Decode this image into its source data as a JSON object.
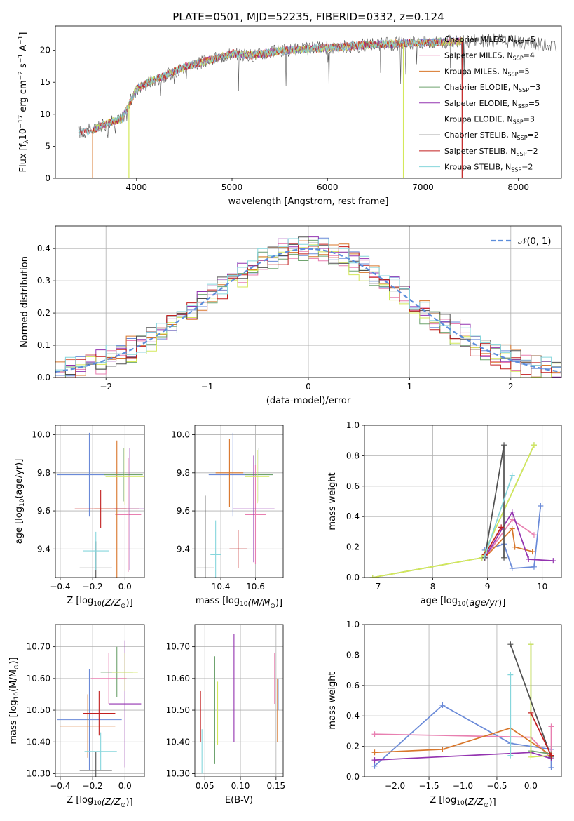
{
  "figure_title": "PLATE=0501, MJD=52235, FIBERID=0332, z=0.124",
  "colors": {
    "chabrier_miles": "#6a8ad8",
    "salpeter_miles": "#e87fb0",
    "kroupa_miles": "#d8762a",
    "chabrier_elodie": "#6fa36f",
    "salpeter_elodie": "#9333b0",
    "kroupa_elodie": "#d4e85a",
    "chabrier_stelib": "#505050",
    "salpeter_stelib": "#c21f1f",
    "kroupa_stelib": "#86d6dc",
    "normal_curve": "#5b8ddb",
    "grid": "#b0b0b0"
  },
  "chart_data": [
    {
      "id": "spectrum",
      "type": "line",
      "title": "",
      "xlabel": "wavelength [Angstrom, rest frame]",
      "ylabel_main": "Flux [f",
      "ylabel_sub": "λ",
      "ylabel_rest": "10",
      "ylabel_exp": "−17",
      "ylabel_units": " erg cm",
      "ylabel_units_exp": "−2",
      "ylabel_units2": " s",
      "ylabel_units2_exp": "−1",
      "ylabel_units3": " A",
      "ylabel_units3_exp": "−1",
      "ylabel_close": "]",
      "xlim": [
        3150,
        8450
      ],
      "ylim": [
        0,
        23.8
      ],
      "xticks": [
        4000,
        5000,
        6000,
        7000,
        8000
      ],
      "yticks": [
        0,
        5,
        10,
        15,
        20
      ],
      "grid": false,
      "legend_position": "upper right",
      "legend": [
        {
          "name": "Chabrier MILES, N",
          "sub": "SSP",
          "suffix": "=5",
          "color_key": "chabrier_miles"
        },
        {
          "name": "Salpeter MILES, N",
          "sub": "SSP",
          "suffix": "=4",
          "color_key": "salpeter_miles"
        },
        {
          "name": "Kroupa MILES, N",
          "sub": "SSP",
          "suffix": "=5",
          "color_key": "kroupa_miles"
        },
        {
          "name": "Chabrier ELODIE, N",
          "sub": "SSP",
          "suffix": "=3",
          "color_key": "chabrier_elodie"
        },
        {
          "name": "Salpeter ELODIE, N",
          "sub": "SSP",
          "suffix": "=5",
          "color_key": "salpeter_elodie"
        },
        {
          "name": "Kroupa ELODIE, N",
          "sub": "SSP",
          "suffix": "=3",
          "color_key": "kroupa_elodie"
        },
        {
          "name": "Chabrier STELIB, N",
          "sub": "SSP",
          "suffix": "=2",
          "color_key": "chabrier_stelib"
        },
        {
          "name": "Salpeter STELIB, N",
          "sub": "SSP",
          "suffix": "=2",
          "color_key": "salpeter_stelib"
        },
        {
          "name": "Kroupa STELIB, N",
          "sub": "SSP",
          "suffix": "=2",
          "color_key": "kroupa_stelib"
        }
      ],
      "continuum": [
        [
          3400,
          7.2
        ],
        [
          3550,
          7.6
        ],
        [
          3700,
          8.6
        ],
        [
          3850,
          9.3
        ],
        [
          4000,
          14.0
        ],
        [
          4150,
          15.2
        ],
        [
          4300,
          16.0
        ],
        [
          4500,
          17.4
        ],
        [
          4800,
          18.6
        ],
        [
          5000,
          19.5
        ],
        [
          5200,
          19.2
        ],
        [
          5500,
          19.9
        ],
        [
          6000,
          20.4
        ],
        [
          6500,
          20.9
        ],
        [
          7000,
          21.2
        ],
        [
          7400,
          21.4
        ],
        [
          7800,
          21.6
        ],
        [
          8300,
          20.9
        ]
      ],
      "model_ranges": {
        "miles_elodie": [
          3540,
          7410
        ],
        "stelib": [
          3400,
          7200
        ],
        "data": [
          3400,
          8400
        ]
      },
      "dips": [
        {
          "x": 3540,
          "y": 0,
          "color_key": "kroupa_miles"
        },
        {
          "x": 3920,
          "y": 0,
          "color_key": "kroupa_elodie"
        },
        {
          "x": 6795,
          "y": 0,
          "color_key": "kroupa_elodie"
        },
        {
          "x": 7410,
          "y": 0,
          "color_key": "salpeter_stelib"
        }
      ]
    },
    {
      "id": "residuals",
      "type": "histogram",
      "xlabel": "(data-model)/error",
      "ylabel": "Normed distribution",
      "xlim": [
        -2.5,
        2.5
      ],
      "ylim": [
        0,
        0.47
      ],
      "xticks": [
        -2,
        -1,
        0,
        1,
        2
      ],
      "yticks": [
        0.0,
        0.1,
        0.2,
        0.3,
        0.4
      ],
      "grid": true,
      "legend_position": "upper right",
      "normal_label": "𝒩(0, 1)",
      "bin_width": 0.1,
      "bins_start": -2.5,
      "series": [
        {
          "color_key": "chabrier_miles",
          "dy": 0.01
        },
        {
          "color_key": "salpeter_miles",
          "dy": -0.008
        },
        {
          "color_key": "kroupa_miles",
          "dy": 0.015
        },
        {
          "color_key": "chabrier_elodie",
          "dy": -0.012
        },
        {
          "color_key": "salpeter_elodie",
          "dy": 0.02
        },
        {
          "color_key": "kroupa_elodie",
          "dy": -0.018
        },
        {
          "color_key": "chabrier_stelib",
          "dy": 0.005
        },
        {
          "color_key": "salpeter_stelib",
          "dy": -0.004
        },
        {
          "color_key": "kroupa_stelib",
          "dy": 0.012
        }
      ]
    },
    {
      "id": "age_vs_Z",
      "type": "errorbar",
      "xlabel": "Z [log",
      "xlabel_sub": "10",
      "xlabel_rest": "(Z/Z",
      "xlabel_sun": "⊙",
      "xlabel_close": ")]",
      "ylabel": "age  [log",
      "ylabel_sub": "10",
      "ylabel_rest": "(age/yr)]",
      "xlim": [
        -0.43,
        0.12
      ],
      "ylim": [
        9.25,
        10.05
      ],
      "xticks": [
        -0.4,
        -0.2,
        0.0
      ],
      "yticks": [
        9.4,
        9.6,
        9.8,
        10.0
      ],
      "grid": true,
      "points": [
        {
          "x": -0.22,
          "y": 9.79,
          "xerr": 0.2,
          "yerr": 0.22,
          "color_key": "chabrier_miles"
        },
        {
          "x": 0.02,
          "y": 9.58,
          "xerr": 0.08,
          "yerr": 0.3,
          "color_key": "salpeter_miles"
        },
        {
          "x": -0.05,
          "y": 9.61,
          "xerr": 0.14,
          "yerr": 0.36,
          "color_key": "kroupa_miles"
        },
        {
          "x": -0.01,
          "y": 9.79,
          "xerr": 0.12,
          "yerr": 0.14,
          "color_key": "chabrier_elodie"
        },
        {
          "x": 0.03,
          "y": 9.61,
          "xerr": 0.1,
          "yerr": 0.32,
          "color_key": "salpeter_elodie"
        },
        {
          "x": 0.0,
          "y": 9.78,
          "xerr": 0.12,
          "yerr": 0.15,
          "color_key": "kroupa_elodie"
        },
        {
          "x": -0.18,
          "y": 9.3,
          "xerr": 0.1,
          "yerr": 0.14,
          "color_key": "chabrier_stelib"
        },
        {
          "x": -0.15,
          "y": 9.61,
          "xerr": 0.16,
          "yerr": 0.1,
          "color_key": "salpeter_stelib"
        },
        {
          "x": -0.18,
          "y": 9.39,
          "xerr": 0.08,
          "yerr": 0.1,
          "color_key": "kroupa_stelib"
        }
      ]
    },
    {
      "id": "age_vs_mass",
      "type": "errorbar",
      "xlabel": "mass [log",
      "xlabel_sub": "10",
      "xlabel_rest": "(M/M",
      "xlabel_sun": "⊙",
      "xlabel_close": ")]",
      "xlim": [
        10.25,
        10.76
      ],
      "ylim": [
        9.25,
        10.05
      ],
      "xticks": [
        10.4,
        10.6
      ],
      "yticks": [
        9.4,
        9.6,
        9.8,
        10.0
      ],
      "grid": true,
      "points": [
        {
          "x": 10.47,
          "y": 9.79,
          "xerr": 0.14,
          "yerr": 0.22,
          "color_key": "chabrier_miles"
        },
        {
          "x": 10.6,
          "y": 9.58,
          "xerr": 0.06,
          "yerr": 0.26,
          "color_key": "salpeter_miles"
        },
        {
          "x": 10.45,
          "y": 9.8,
          "xerr": 0.08,
          "yerr": 0.18,
          "color_key": "kroupa_miles"
        },
        {
          "x": 10.62,
          "y": 9.79,
          "xerr": 0.08,
          "yerr": 0.14,
          "color_key": "chabrier_elodie"
        },
        {
          "x": 10.59,
          "y": 9.61,
          "xerr": 0.12,
          "yerr": 0.28,
          "color_key": "salpeter_elodie"
        },
        {
          "x": 10.61,
          "y": 9.78,
          "xerr": 0.07,
          "yerr": 0.14,
          "color_key": "kroupa_elodie"
        },
        {
          "x": 10.31,
          "y": 9.3,
          "xerr": 0.05,
          "yerr": 0.38,
          "color_key": "chabrier_stelib"
        },
        {
          "x": 10.5,
          "y": 9.4,
          "xerr": 0.05,
          "yerr": 0.1,
          "color_key": "salpeter_stelib"
        },
        {
          "x": 10.37,
          "y": 9.37,
          "xerr": 0.03,
          "yerr": 0.18,
          "color_key": "kroupa_stelib"
        }
      ]
    },
    {
      "id": "weight_vs_age",
      "type": "line",
      "xlabel": "age  [log",
      "xlabel_sub": "10",
      "xlabel_rest": "(age/yr)]",
      "ylabel": "mass weight",
      "xlim": [
        6.75,
        10.35
      ],
      "ylim": [
        0,
        1.0
      ],
      "xticks": [
        7,
        8,
        9,
        10
      ],
      "yticks": [
        0.0,
        0.2,
        0.4,
        0.6,
        0.8,
        1.0
      ],
      "grid": true,
      "series": [
        {
          "color_key": "chabrier_miles",
          "x": [
            8.95,
            9.3,
            9.45,
            9.85,
            9.97
          ],
          "y": [
            0.18,
            0.22,
            0.06,
            0.07,
            0.47
          ]
        },
        {
          "color_key": "salpeter_miles",
          "x": [
            8.95,
            9.45,
            9.85
          ],
          "y": [
            0.13,
            0.38,
            0.28
          ]
        },
        {
          "color_key": "kroupa_miles",
          "x": [
            8.95,
            9.45,
            9.5,
            9.82
          ],
          "y": [
            0.13,
            0.32,
            0.2,
            0.17
          ]
        },
        {
          "color_key": "chabrier_elodie",
          "x": [
            6.9,
            8.9,
            9.85
          ],
          "y": [
            0.0,
            0.13,
            0.87
          ]
        },
        {
          "color_key": "salpeter_elodie",
          "x": [
            8.95,
            9.45,
            9.75,
            10.2
          ],
          "y": [
            0.13,
            0.43,
            0.12,
            0.11
          ]
        },
        {
          "color_key": "kroupa_elodie",
          "x": [
            6.9,
            8.9,
            9.85
          ],
          "y": [
            0.0,
            0.13,
            0.87
          ]
        },
        {
          "color_key": "chabrier_stelib",
          "x": [
            8.95,
            9.3,
            9.3
          ],
          "y": [
            0.13,
            0.87,
            0.13
          ]
        },
        {
          "color_key": "salpeter_stelib",
          "x": [
            8.95,
            9.25
          ],
          "y": [
            0.15,
            0.33
          ]
        },
        {
          "color_key": "kroupa_stelib",
          "x": [
            8.95,
            9.45
          ],
          "y": [
            0.14,
            0.67
          ]
        }
      ]
    },
    {
      "id": "mass_vs_Z",
      "type": "errorbar",
      "xlabel": "Z [log",
      "xlabel_sub": "10",
      "xlabel_rest": "(Z/Z",
      "xlabel_sun": "⊙",
      "xlabel_close": ")]",
      "ylabel": "mass [log",
      "ylabel_sub": "10",
      "ylabel_rest": "(M/M",
      "ylabel_sun": "⊙",
      "ylabel_close": ")]",
      "xlim": [
        -0.43,
        0.12
      ],
      "ylim": [
        10.29,
        10.77
      ],
      "xticks": [
        -0.4,
        -0.2,
        0.0
      ],
      "yticks": [
        10.3,
        10.4,
        10.5,
        10.6,
        10.7
      ],
      "grid": true,
      "points": [
        {
          "x": -0.22,
          "y": 10.47,
          "xerr": 0.2,
          "yerr": 0.16,
          "color_key": "chabrier_miles"
        },
        {
          "x": -0.1,
          "y": 10.6,
          "xerr": 0.11,
          "yerr": 0.08,
          "color_key": "salpeter_miles"
        },
        {
          "x": -0.23,
          "y": 10.45,
          "xerr": 0.17,
          "yerr": 0.1,
          "color_key": "kroupa_miles"
        },
        {
          "x": -0.05,
          "y": 10.62,
          "xerr": 0.1,
          "yerr": 0.08,
          "color_key": "chabrier_elodie"
        },
        {
          "x": 0.0,
          "y": 10.52,
          "xerr": 0.1,
          "yerr": 0.2,
          "color_key": "salpeter_elodie"
        },
        {
          "x": 0.0,
          "y": 10.62,
          "xerr": 0.08,
          "yerr": 0.06,
          "color_key": "kroupa_elodie"
        },
        {
          "x": -0.18,
          "y": 10.31,
          "xerr": 0.1,
          "yerr": 0.06,
          "color_key": "chabrier_stelib"
        },
        {
          "x": -0.16,
          "y": 10.49,
          "xerr": 0.1,
          "yerr": 0.07,
          "color_key": "salpeter_stelib"
        },
        {
          "x": -0.15,
          "y": 10.37,
          "xerr": 0.1,
          "yerr": 0.06,
          "color_key": "kroupa_stelib"
        }
      ]
    },
    {
      "id": "mass_vs_ebv",
      "type": "errorbar",
      "xlabel": "E(B-V)",
      "xlim": [
        0.036,
        0.16
      ],
      "ylim": [
        10.29,
        10.77
      ],
      "xticks": [
        0.05,
        0.1,
        0.15
      ],
      "yticks": [
        10.3,
        10.4,
        10.5,
        10.6,
        10.7
      ],
      "grid": true,
      "points": [
        {
          "x": 0.046,
          "y": 10.37,
          "xerr": 0.0,
          "yerr": 0.07,
          "color_key": "kroupa_stelib"
        },
        {
          "x": 0.044,
          "y": 10.48,
          "xerr": 0.0,
          "yerr": 0.08,
          "color_key": "salpeter_stelib"
        },
        {
          "x": 0.064,
          "y": 10.5,
          "xerr": 0.0,
          "yerr": 0.17,
          "color_key": "chabrier_elodie"
        },
        {
          "x": 0.068,
          "y": 10.49,
          "xerr": 0.0,
          "yerr": 0.1,
          "color_key": "kroupa_elodie"
        },
        {
          "x": 0.091,
          "y": 10.57,
          "xerr": 0.0,
          "yerr": 0.17,
          "color_key": "salpeter_elodie"
        },
        {
          "x": 0.148,
          "y": 10.6,
          "xerr": 0.0,
          "yerr": 0.08,
          "color_key": "salpeter_miles"
        },
        {
          "x": 0.152,
          "y": 10.5,
          "xerr": 0.0,
          "yerr": 0.1,
          "color_key": "kroupa_miles"
        },
        {
          "x": 0.153,
          "y": 10.55,
          "xerr": 0.0,
          "yerr": 0.05,
          "color_key": "chabrier_miles"
        }
      ]
    },
    {
      "id": "weight_vs_Z",
      "type": "line",
      "xlabel": "Z [log",
      "xlabel_sub": "10",
      "xlabel_rest": "(Z/Z",
      "xlabel_sun": "⊙",
      "xlabel_close": ")]",
      "ylabel": "mass weight",
      "xlim": [
        -2.45,
        0.45
      ],
      "ylim": [
        0,
        1.0
      ],
      "xticks": [
        -2.0,
        -1.5,
        -1.0,
        -0.5,
        0.0
      ],
      "yticks": [
        0.0,
        0.2,
        0.4,
        0.6,
        0.8,
        1.0
      ],
      "grid": true,
      "series": [
        {
          "color_key": "chabrier_miles",
          "x": [
            -2.3,
            -1.3,
            -0.3,
            0.3,
            0.3
          ],
          "y": [
            0.07,
            0.47,
            0.22,
            0.18,
            0.06
          ]
        },
        {
          "color_key": "salpeter_miles",
          "x": [
            -2.3,
            0.0,
            0.3,
            0.3
          ],
          "y": [
            0.28,
            0.26,
            0.12,
            0.33
          ]
        },
        {
          "color_key": "kroupa_miles",
          "x": [
            -2.3,
            -1.3,
            -0.3,
            0.3
          ],
          "y": [
            0.16,
            0.18,
            0.32,
            0.14
          ]
        },
        {
          "color_key": "chabrier_elodie",
          "x": [
            0.0,
            0.0,
            0.3
          ],
          "y": [
            0.87,
            0.17,
            0.15
          ]
        },
        {
          "color_key": "salpeter_elodie",
          "x": [
            -2.3,
            0.0,
            0.3
          ],
          "y": [
            0.11,
            0.16,
            0.12
          ]
        },
        {
          "color_key": "kroupa_elodie",
          "x": [
            0.0,
            0.0,
            0.3
          ],
          "y": [
            0.87,
            0.13,
            0.14
          ]
        },
        {
          "color_key": "chabrier_stelib",
          "x": [
            -0.3,
            0.3
          ],
          "y": [
            0.87,
            0.13
          ]
        },
        {
          "color_key": "salpeter_stelib",
          "x": [
            0.0,
            0.3
          ],
          "y": [
            0.42,
            0.14
          ]
        },
        {
          "color_key": "kroupa_stelib",
          "x": [
            -0.3,
            -0.3
          ],
          "y": [
            0.67,
            0.14
          ]
        }
      ]
    }
  ]
}
